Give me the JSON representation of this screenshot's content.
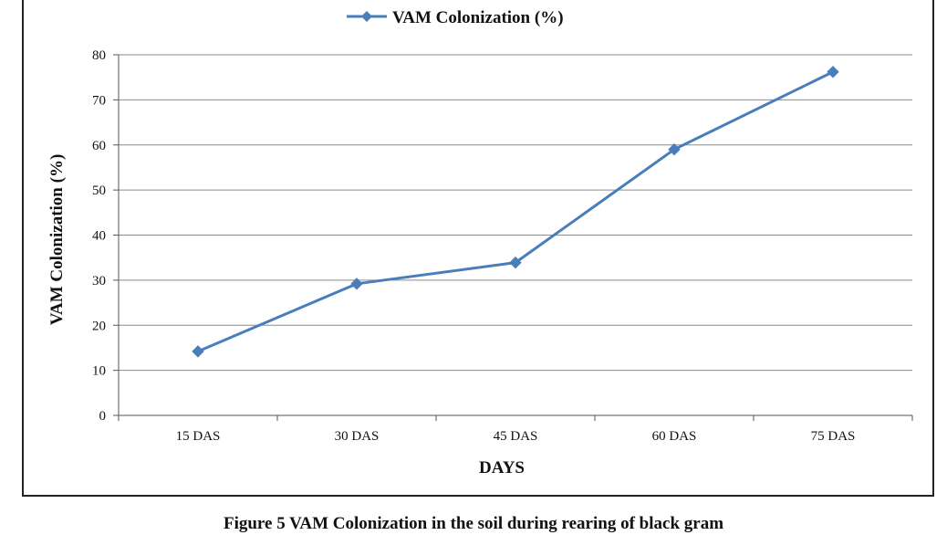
{
  "chart_data": {
    "type": "line",
    "categories": [
      "15 DAS",
      "30 DAS",
      "45 DAS",
      "60 DAS",
      "75 DAS"
    ],
    "series": [
      {
        "name": "VAM Colonization (%)",
        "values": [
          14.2,
          29.2,
          33.9,
          59.0,
          76.2
        ],
        "color": "#4a7ebb"
      }
    ],
    "xlabel": "DAYS",
    "ylabel": "VAM Colonization (%)",
    "ylim": [
      0,
      80
    ],
    "yticks": [
      0,
      10,
      20,
      30,
      40,
      50,
      60,
      70,
      80
    ],
    "grid": true,
    "legend_position": "top",
    "marker": "diamond"
  },
  "caption": "Figure 5 VAM Colonization in the soil during rearing of black gram"
}
